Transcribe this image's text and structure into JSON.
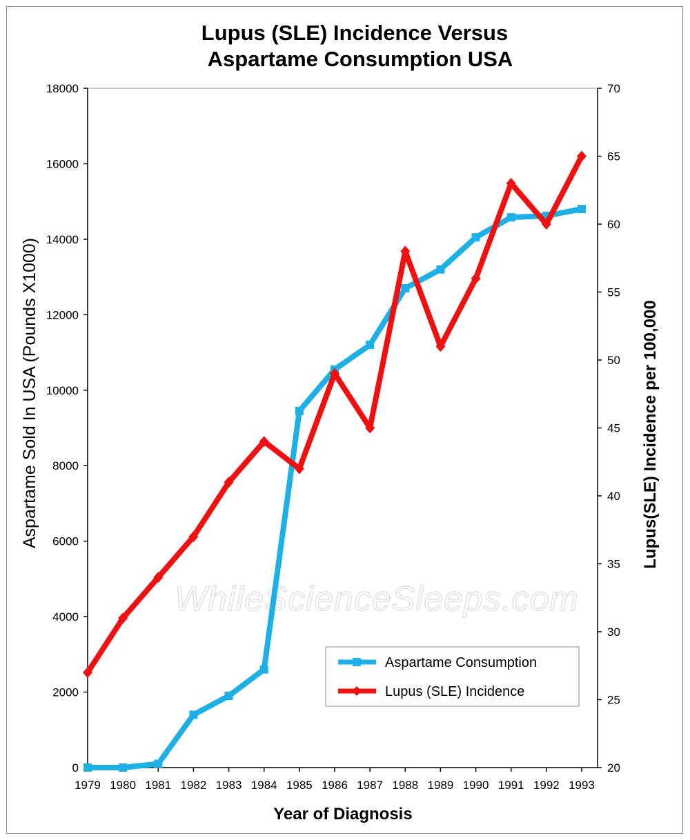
{
  "chart_data": {
    "type": "line",
    "title_line1": "Lupus (SLE) Incidence Versus",
    "title_line2": "Aspartame Consumption USA",
    "xlabel": "Year of Diagnosis",
    "ylabel": "Aspartame Sold In USA  (Pounds X1000)",
    "y2label": "Lupus(SLE) Incidence per 100,000",
    "categories": [
      "1979",
      "1980",
      "1981",
      "1982",
      "1983",
      "1984",
      "1985",
      "1986",
      "1987",
      "1988",
      "1989",
      "1990",
      "1991",
      "1992",
      "1993"
    ],
    "ylim": [
      0,
      18000
    ],
    "y_ticks": [
      "0",
      "2000",
      "4000",
      "6000",
      "8000",
      "10000",
      "12000",
      "14000",
      "16000",
      "18000"
    ],
    "y2lim": [
      20,
      70
    ],
    "y2_ticks": [
      "20",
      "25",
      "30",
      "35",
      "40",
      "45",
      "50",
      "55",
      "60",
      "65",
      "70"
    ],
    "series": [
      {
        "name": "Aspartame Consumption",
        "axis": "left",
        "color": "#1cb0e6",
        "marker": "square",
        "values": [
          0,
          0,
          100,
          1400,
          1900,
          2600,
          9450,
          10550,
          11200,
          12700,
          13200,
          14050,
          14580,
          14620,
          14800
        ]
      },
      {
        "name": "Lupus (SLE) Incidence",
        "axis": "right",
        "color": "#f01010",
        "marker": "diamond",
        "values": [
          27,
          31,
          34,
          37,
          41,
          44,
          42,
          49,
          45,
          58,
          51,
          56,
          63,
          60,
          65
        ]
      }
    ],
    "grid": false,
    "legend_position": "bottom-right"
  },
  "watermark": "WhileScienceSleeps.com"
}
